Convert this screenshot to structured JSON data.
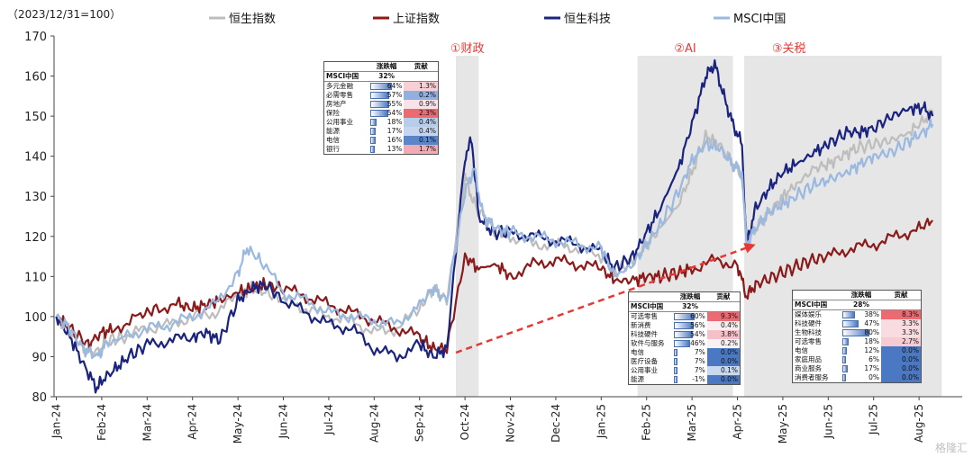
{
  "chart_data": {
    "type": "line",
    "subtitle": "（2023/12/31=100）",
    "ylim": [
      80,
      170
    ],
    "yticks": [
      80,
      90,
      100,
      110,
      120,
      130,
      140,
      150,
      160,
      170
    ],
    "xticks": [
      "Jan-24",
      "Feb-24",
      "Mar-24",
      "Apr-24",
      "May-24",
      "Jun-24",
      "Jul-24",
      "Aug-24",
      "Sep-24",
      "Oct-24",
      "Nov-24",
      "Dec-24",
      "Jan-25",
      "Feb-25",
      "Mar-25",
      "Apr-25",
      "May-25",
      "Jun-25",
      "Jul-25",
      "Aug-25"
    ],
    "legend_position": "top",
    "series": [
      {
        "name": "恒生指数",
        "color": "#bdbdbd",
        "points": [
          [
            0,
            100
          ],
          [
            0.3,
            96
          ],
          [
            0.6,
            92
          ],
          [
            0.9,
            91
          ],
          [
            1.1,
            94
          ],
          [
            1.5,
            95
          ],
          [
            2,
            97
          ],
          [
            2.5,
            98
          ],
          [
            3,
            100
          ],
          [
            3.5,
            101
          ],
          [
            4,
            105
          ],
          [
            4.3,
            107
          ],
          [
            4.6,
            106
          ],
          [
            5,
            104
          ],
          [
            5.5,
            102
          ],
          [
            6,
            100
          ],
          [
            6.5,
            99
          ],
          [
            7,
            96
          ],
          [
            7.5,
            97
          ],
          [
            8,
            102
          ],
          [
            8.3,
            107
          ],
          [
            8.6,
            104
          ],
          [
            9.0,
            135
          ],
          [
            9.2,
            128
          ],
          [
            9.6,
            122
          ],
          [
            10,
            120
          ],
          [
            10.5,
            118
          ],
          [
            11,
            118
          ],
          [
            11.5,
            117
          ],
          [
            12,
            115
          ],
          [
            12.3,
            111
          ],
          [
            12.7,
            114
          ],
          [
            13,
            118
          ],
          [
            13.3,
            122
          ],
          [
            13.7,
            128
          ],
          [
            14,
            136
          ],
          [
            14.3,
            145
          ],
          [
            14.6,
            143
          ],
          [
            14.9,
            138
          ],
          [
            15.1,
            135
          ],
          [
            15.2,
            118
          ],
          [
            15.4,
            122
          ],
          [
            15.7,
            126
          ],
          [
            16,
            130
          ],
          [
            16.3,
            133
          ],
          [
            16.7,
            137
          ],
          [
            17,
            138
          ],
          [
            17.3,
            140
          ],
          [
            17.6,
            142
          ],
          [
            18,
            143
          ],
          [
            18.4,
            144
          ],
          [
            18.8,
            146
          ],
          [
            19.1,
            149
          ],
          [
            19.3,
            151
          ]
        ]
      },
      {
        "name": "上证指数",
        "color": "#8b1a1a",
        "points": [
          [
            0,
            100
          ],
          [
            0.3,
            97
          ],
          [
            0.7,
            93
          ],
          [
            1,
            96
          ],
          [
            1.3,
            97
          ],
          [
            1.8,
            100
          ],
          [
            2.2,
            102
          ],
          [
            2.7,
            103
          ],
          [
            3,
            102
          ],
          [
            3.3,
            103
          ],
          [
            3.6,
            104
          ],
          [
            4,
            106
          ],
          [
            4.3,
            107
          ],
          [
            4.6,
            108
          ],
          [
            5,
            107
          ],
          [
            5.5,
            105
          ],
          [
            6,
            103
          ],
          [
            6.5,
            101
          ],
          [
            7,
            99
          ],
          [
            7.5,
            97
          ],
          [
            8,
            95
          ],
          [
            8.3,
            92
          ],
          [
            8.6,
            92
          ],
          [
            9.0,
            115
          ],
          [
            9.3,
            112
          ],
          [
            9.7,
            113
          ],
          [
            10,
            110
          ],
          [
            10.5,
            113
          ],
          [
            11,
            114
          ],
          [
            11.5,
            113
          ],
          [
            12,
            112
          ],
          [
            12.3,
            109
          ],
          [
            12.7,
            109
          ],
          [
            13,
            110
          ],
          [
            13.3,
            110
          ],
          [
            13.7,
            111
          ],
          [
            14,
            112
          ],
          [
            14.5,
            114
          ],
          [
            15,
            113
          ],
          [
            15.2,
            105
          ],
          [
            15.4,
            108
          ],
          [
            15.8,
            110
          ],
          [
            16.2,
            112
          ],
          [
            16.6,
            114
          ],
          [
            17,
            115
          ],
          [
            17.5,
            117
          ],
          [
            18,
            118
          ],
          [
            18.5,
            120
          ],
          [
            19,
            122
          ],
          [
            19.3,
            124
          ]
        ]
      },
      {
        "name": "恒生科技",
        "color": "#1a237e",
        "points": [
          [
            0,
            100
          ],
          [
            0.3,
            95
          ],
          [
            0.6,
            88
          ],
          [
            0.9,
            82
          ],
          [
            1,
            84
          ],
          [
            1.3,
            87
          ],
          [
            1.6,
            90
          ],
          [
            2,
            93
          ],
          [
            2.5,
            94
          ],
          [
            3,
            95
          ],
          [
            3.3,
            96
          ],
          [
            3.6,
            94
          ],
          [
            4,
            104
          ],
          [
            4.3,
            107
          ],
          [
            4.6,
            108
          ],
          [
            5,
            104
          ],
          [
            5.5,
            101
          ],
          [
            6,
            98
          ],
          [
            6.5,
            97
          ],
          [
            7,
            92
          ],
          [
            7.5,
            90
          ],
          [
            8,
            93
          ],
          [
            8.3,
            90
          ],
          [
            8.6,
            92
          ],
          [
            9.0,
            140
          ],
          [
            9.15,
            144
          ],
          [
            9.3,
            125
          ],
          [
            9.6,
            121
          ],
          [
            10,
            121
          ],
          [
            10.5,
            120
          ],
          [
            11,
            119
          ],
          [
            11.5,
            118
          ],
          [
            12,
            116
          ],
          [
            12.3,
            112
          ],
          [
            12.7,
            115
          ],
          [
            13,
            121
          ],
          [
            13.3,
            127
          ],
          [
            13.7,
            137
          ],
          [
            14,
            148
          ],
          [
            14.3,
            160
          ],
          [
            14.5,
            163
          ],
          [
            14.7,
            155
          ],
          [
            14.9,
            148
          ],
          [
            15.1,
            143
          ],
          [
            15.2,
            118
          ],
          [
            15.4,
            127
          ],
          [
            15.7,
            132
          ],
          [
            16,
            136
          ],
          [
            16.3,
            138
          ],
          [
            16.7,
            141
          ],
          [
            17,
            143
          ],
          [
            17.4,
            146
          ],
          [
            17.7,
            146
          ],
          [
            18,
            147
          ],
          [
            18.4,
            150
          ],
          [
            18.8,
            152
          ],
          [
            19.1,
            152
          ],
          [
            19.3,
            150
          ]
        ]
      },
      {
        "name": "MSCI中国",
        "color": "#9ab8e0",
        "points": [
          [
            0,
            100
          ],
          [
            0.3,
            97
          ],
          [
            0.6,
            92
          ],
          [
            0.9,
            90
          ],
          [
            1.1,
            93
          ],
          [
            1.5,
            95
          ],
          [
            2,
            97
          ],
          [
            2.5,
            98
          ],
          [
            3,
            100
          ],
          [
            3.5,
            103
          ],
          [
            4,
            111
          ],
          [
            4.2,
            117
          ],
          [
            4.5,
            114
          ],
          [
            5,
            106
          ],
          [
            5.5,
            104
          ],
          [
            6,
            101
          ],
          [
            6.5,
            100
          ],
          [
            7,
            99
          ],
          [
            7.5,
            98
          ],
          [
            8,
            103
          ],
          [
            8.3,
            107
          ],
          [
            8.6,
            104
          ],
          [
            9.0,
            131
          ],
          [
            9.2,
            137
          ],
          [
            9.4,
            125
          ],
          [
            9.7,
            122
          ],
          [
            10,
            121
          ],
          [
            10.5,
            120
          ],
          [
            11,
            119
          ],
          [
            11.5,
            118
          ],
          [
            12,
            117
          ],
          [
            12.3,
            110
          ],
          [
            12.7,
            113
          ],
          [
            13,
            118
          ],
          [
            13.3,
            123
          ],
          [
            13.7,
            131
          ],
          [
            14,
            139
          ],
          [
            14.3,
            143
          ],
          [
            14.6,
            142
          ],
          [
            14.9,
            138
          ],
          [
            15.1,
            136
          ],
          [
            15.2,
            118
          ],
          [
            15.4,
            122
          ],
          [
            15.7,
            126
          ],
          [
            16,
            128
          ],
          [
            16.3,
            130
          ],
          [
            16.7,
            133
          ],
          [
            17,
            134
          ],
          [
            17.4,
            136
          ],
          [
            17.7,
            138
          ],
          [
            18,
            140
          ],
          [
            18.4,
            141
          ],
          [
            18.8,
            144
          ],
          [
            19.1,
            146
          ],
          [
            19.3,
            148
          ]
        ]
      }
    ],
    "shaded_regions": [
      {
        "label": "①财政",
        "from": 8.8,
        "to": 9.3
      },
      {
        "label": "②AI",
        "from": 12.8,
        "to": 14.9
      },
      {
        "label": "③关税",
        "from": 15.15,
        "to": 19.5
      }
    ],
    "arrow": {
      "from": [
        8.8,
        91
      ],
      "to": [
        15.4,
        118
      ],
      "color": "#e53935"
    }
  },
  "tables": [
    {
      "id": "t1",
      "header": [
        "",
        "涨跌幅",
        "贡献"
      ],
      "main": {
        "name": "MSCI中国",
        "chg": "32%",
        "contrib": ""
      },
      "rows": [
        {
          "name": "多元金融",
          "chg": "64%",
          "pct": 0.64,
          "contrib": "1.3%",
          "color": "#f7d0d6"
        },
        {
          "name": "必需零售",
          "chg": "57%",
          "pct": 0.57,
          "contrib": "0.2%",
          "color": "#8fb0e0"
        },
        {
          "name": "房地产",
          "chg": "55%",
          "pct": 0.55,
          "contrib": "0.9%",
          "color": "#f8e4e8"
        },
        {
          "name": "保险",
          "chg": "54%",
          "pct": 0.54,
          "contrib": "2.3%",
          "color": "#ec6a72"
        },
        {
          "name": "公用事业",
          "chg": "18%",
          "pct": 0.18,
          "contrib": "0.4%",
          "color": "#b8cdea"
        },
        {
          "name": "能源",
          "chg": "17%",
          "pct": 0.17,
          "contrib": "0.4%",
          "color": "#c5d6ee"
        },
        {
          "name": "电信",
          "chg": "16%",
          "pct": 0.16,
          "contrib": "0.1%",
          "color": "#5b85c9"
        },
        {
          "name": "银行",
          "chg": "13%",
          "pct": 0.13,
          "contrib": "1.7%",
          "color": "#f2aab3"
        }
      ]
    },
    {
      "id": "t2",
      "header": [
        "",
        "涨跌幅",
        "贡献"
      ],
      "main": {
        "name": "MSCI中国",
        "chg": "32%",
        "contrib": ""
      },
      "rows": [
        {
          "name": "可选零售",
          "chg": "60%",
          "pct": 0.6,
          "contrib": "9.3%",
          "color": "#ec6a72"
        },
        {
          "name": "新消费",
          "chg": "56%",
          "pct": 0.56,
          "contrib": "0.4%",
          "color": "#f9eef0"
        },
        {
          "name": "科技硬件",
          "chg": "54%",
          "pct": 0.54,
          "contrib": "3.8%",
          "color": "#f5c1c8"
        },
        {
          "name": "软件与服务",
          "chg": "46%",
          "pct": 0.46,
          "contrib": "0.2%",
          "color": "#f9f2f3"
        },
        {
          "name": "电信",
          "chg": "7%",
          "pct": 0.07,
          "contrib": "0.0%",
          "color": "#4a78c2"
        },
        {
          "name": "医疗设备",
          "chg": "7%",
          "pct": 0.07,
          "contrib": "0.0%",
          "color": "#4a78c2"
        },
        {
          "name": "公用事业",
          "chg": "7%",
          "pct": 0.07,
          "contrib": "0.1%",
          "color": "#c9d9ef"
        },
        {
          "name": "能源",
          "chg": "-1%",
          "pct": 0.0,
          "contrib": "0.0%",
          "color": "#4a78c2"
        }
      ]
    },
    {
      "id": "t3",
      "header": [
        "",
        "涨跌幅",
        "贡献"
      ],
      "main": {
        "name": "MSCI中国",
        "chg": "28%",
        "contrib": ""
      },
      "rows": [
        {
          "name": "媒体娱乐",
          "chg": "38%",
          "pct": 0.38,
          "contrib": "8.3%",
          "color": "#ec6a72"
        },
        {
          "name": "科技硬件",
          "chg": "47%",
          "pct": 0.47,
          "contrib": "3.3%",
          "color": "#f8dce0"
        },
        {
          "name": "生物科技",
          "chg": "80%",
          "pct": 0.8,
          "contrib": "3.3%",
          "color": "#f8dce0"
        },
        {
          "name": "可选零售",
          "chg": "18%",
          "pct": 0.18,
          "contrib": "2.7%",
          "color": "#f6ccd2"
        },
        {
          "name": "电信",
          "chg": "12%",
          "pct": 0.12,
          "contrib": "0.0%",
          "color": "#4a78c2"
        },
        {
          "name": "家庭用品",
          "chg": "6%",
          "pct": 0.06,
          "contrib": "0.0%",
          "color": "#4a78c2"
        },
        {
          "name": "商业服务",
          "chg": "17%",
          "pct": 0.17,
          "contrib": "0.0%",
          "color": "#4a78c2"
        },
        {
          "name": "消费者服务",
          "chg": "0%",
          "pct": 0.0,
          "contrib": "0.0%",
          "color": "#4a78c2"
        }
      ]
    }
  ],
  "watermark": "格隆汇"
}
